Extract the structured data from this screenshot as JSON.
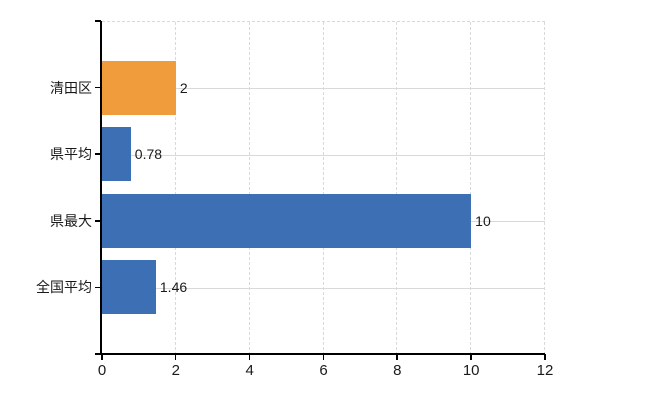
{
  "chart_data": {
    "type": "bar",
    "orientation": "horizontal",
    "title": "",
    "xlabel": "",
    "ylabel": "",
    "categories": [
      "清田区",
      "県平均",
      "県最大",
      "全国平均"
    ],
    "values": [
      2,
      0.78,
      10,
      1.46
    ],
    "value_labels": [
      "2",
      "0.78",
      "10",
      "1.46"
    ],
    "bar_colors": [
      "#f09c3c",
      "#3d6fb4",
      "#3d6fb4",
      "#3d6fb4"
    ],
    "highlight_index": 0,
    "xlim": [
      0,
      12
    ],
    "xticks": [
      0,
      2,
      4,
      6,
      8,
      10,
      12
    ],
    "xtick_labels": [
      "0",
      "2",
      "4",
      "6",
      "8",
      "10",
      "12"
    ],
    "legend": [],
    "grid": {
      "vertical_style": "dashed",
      "horizontal_style": "solid",
      "color": "#d9d9d9"
    },
    "colors": {
      "highlight": "#f09c3c",
      "default": "#3d6fb4",
      "axis": "#000000",
      "text": "#1a1a1a",
      "background": "#ffffff"
    }
  }
}
